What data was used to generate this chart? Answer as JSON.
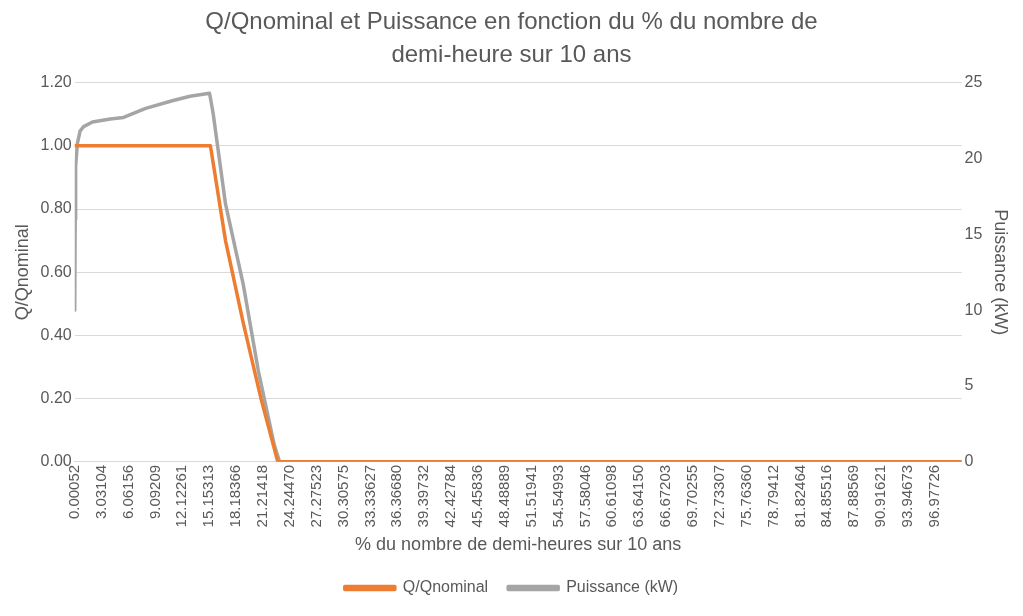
{
  "chart_data": {
    "type": "line",
    "title": "Q/Qnominal et Puissance en fonction du % du nombre de demi-heure sur 10 ans",
    "xlabel": "% du nombre de demi-heures sur 10 ans",
    "ylabel": "Q/Qnominal",
    "y2label": "Puissance (kW)",
    "xlim": [
      0.00052,
      100
    ],
    "xticks": [
      0.00052,
      {
        "value": 3.03104,
        "label": "3.03104"
      },
      {
        "value": 6.06156,
        "label": "6.06156"
      },
      {
        "value": 9.09209,
        "label": "9.09209"
      },
      {
        "value": 12.12261,
        "label": "12.12261"
      },
      {
        "value": 15.15313,
        "label": "15.15313"
      },
      {
        "value": 18.18366,
        "label": "18.18366"
      },
      {
        "value": 21.21418,
        "label": "21.21418"
      },
      {
        "value": 24.2447,
        "label": "24.24470"
      },
      {
        "value": 27.27523,
        "label": "27.27523"
      },
      {
        "value": 30.30575,
        "label": "30.30575"
      },
      {
        "value": 33.33627,
        "label": "33.33627"
      },
      {
        "value": 36.3668,
        "label": "36.36680"
      },
      {
        "value": 39.39732,
        "label": "39.39732"
      },
      {
        "value": 42.42784,
        "label": "42.42784"
      },
      {
        "value": 45.45836,
        "label": "45.45836"
      },
      {
        "value": 48.48889,
        "label": "48.48889"
      },
      {
        "value": 51.51941,
        "label": "51.51941"
      },
      {
        "value": 54.54993,
        "label": "54.54993"
      },
      {
        "value": 57.58046,
        "label": "57.58046"
      },
      {
        "value": 60.61098,
        "label": "60.61098"
      },
      {
        "value": 63.6415,
        "label": "63.64150"
      },
      {
        "value": 66.67203,
        "label": "66.67203"
      },
      {
        "value": 69.70255,
        "label": "69.70255"
      },
      {
        "value": 72.73307,
        "label": "72.73307"
      },
      {
        "value": 75.7636,
        "label": "75.76360"
      },
      {
        "value": 78.79412,
        "label": "78.79412"
      },
      {
        "value": 81.82464,
        "label": "81.82464"
      },
      {
        "value": 84.85516,
        "label": "84.85516"
      },
      {
        "value": 87.88569,
        "label": "87.88569"
      },
      {
        "value": 90.91621,
        "label": "90.91621"
      },
      {
        "value": 93.94673,
        "label": "93.94673"
      },
      {
        "value": 96.97726,
        "label": "96.97726"
      }
    ],
    "ylim": [
      0,
      1.2
    ],
    "yticks": [
      {
        "value": 0,
        "label": "0.00"
      },
      {
        "value": 0.2,
        "label": "0.20"
      },
      {
        "value": 0.4,
        "label": "0.40"
      },
      {
        "value": 0.6,
        "label": "0.60"
      },
      {
        "value": 0.8,
        "label": "0.80"
      },
      {
        "value": 1,
        "label": "1.00"
      },
      {
        "value": 1.2,
        "label": "1.20"
      }
    ],
    "y2lim": [
      0,
      25
    ],
    "y2ticks": [
      0,
      5,
      10,
      15,
      20,
      25
    ],
    "grid": "y",
    "legend": "bottom",
    "marker": "none",
    "line_style": "solid",
    "series": [
      {
        "name": "Q/Qnominal",
        "color": "#ed7d31",
        "x": [
          0.00052,
          15.3,
          17,
          19,
          21,
          22.9,
          100
        ],
        "values": [
          1,
          1,
          0.7,
          0.44,
          0.2,
          0,
          0
        ]
      },
      {
        "name": "Puissance (kW)",
        "color": "#a5a5a5",
        "axis": "y2",
        "x": [
          0.00052,
          0.05,
          0.1,
          0.3,
          0.6,
          1,
          2,
          4,
          5.5,
          8,
          11,
          13,
          15.2,
          15.6,
          17,
          19,
          20.7,
          22.5,
          23.1,
          100
        ],
        "values": [
          10,
          16,
          19.5,
          21,
          21.8,
          22.1,
          22.4,
          22.6,
          22.7,
          23.3,
          23.8,
          24.1,
          24.3,
          23,
          17,
          11.7,
          6,
          1.1,
          0,
          0
        ]
      }
    ]
  }
}
